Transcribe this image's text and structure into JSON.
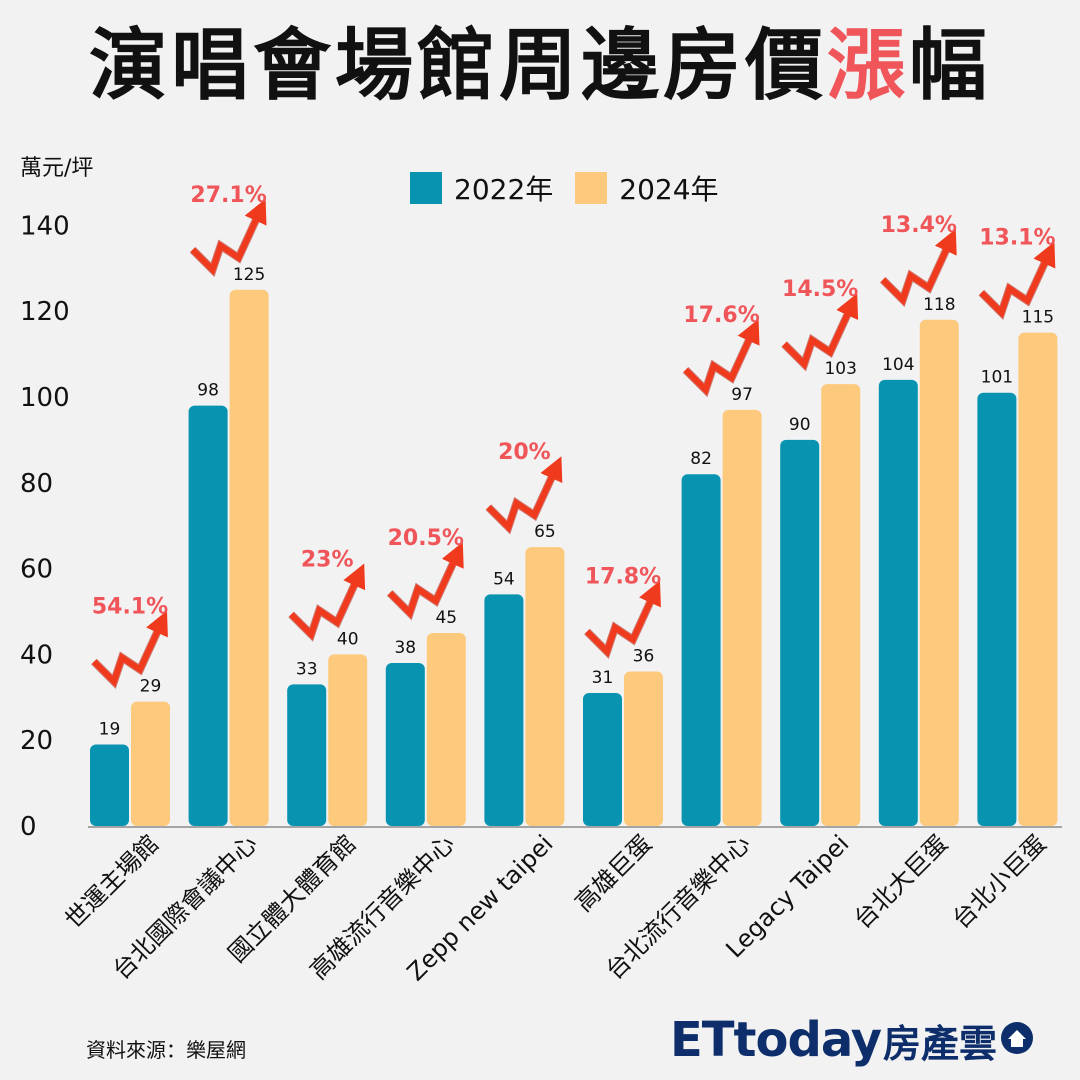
{
  "title": {
    "main": "演唱會場館周邊房價",
    "highlight": "漲",
    "tail": "幅",
    "highlight_color": "#f0555a"
  },
  "unit_label": "萬元/坪",
  "legend": [
    {
      "label": "2022年",
      "color": "#0894b0"
    },
    {
      "label": "2024年",
      "color": "#fdc97c"
    }
  ],
  "source": "資料來源：樂屋網",
  "brand": {
    "text_latin": "ETtoday",
    "text_zh": "房產雲",
    "icon": "house-icon",
    "color": "#0d2d6b"
  },
  "chart_data": {
    "type": "bar",
    "categories": [
      "世運主場館",
      "台北國際會議中心",
      "國立體大體育館",
      "高雄流行音樂中心",
      "Zepp new taipei",
      "高雄巨蛋",
      "台北流行音樂中心",
      "Legacy Taipei",
      "台北大巨蛋",
      "台北小巨蛋"
    ],
    "series": [
      {
        "name": "2022年",
        "color": "#0894b0",
        "values": [
          19,
          98,
          33,
          38,
          54,
          31,
          82,
          90,
          104,
          101
        ]
      },
      {
        "name": "2024年",
        "color": "#fdc97c",
        "values": [
          29,
          125,
          40,
          45,
          65,
          36,
          97,
          103,
          118,
          115
        ]
      }
    ],
    "growth_labels": [
      "54.1%",
      "27.1%",
      "23%",
      "20.5%",
      "20%",
      "17.8%",
      "17.6%",
      "14.5%",
      "13.4%",
      "13.1%"
    ],
    "growth_color": "#f0555a",
    "ylim": [
      0,
      140
    ],
    "yticks": [
      0,
      20,
      40,
      60,
      80,
      100,
      120,
      140
    ],
    "ylabel": "萬元/坪",
    "grid": false,
    "legend_position": "top-center"
  }
}
